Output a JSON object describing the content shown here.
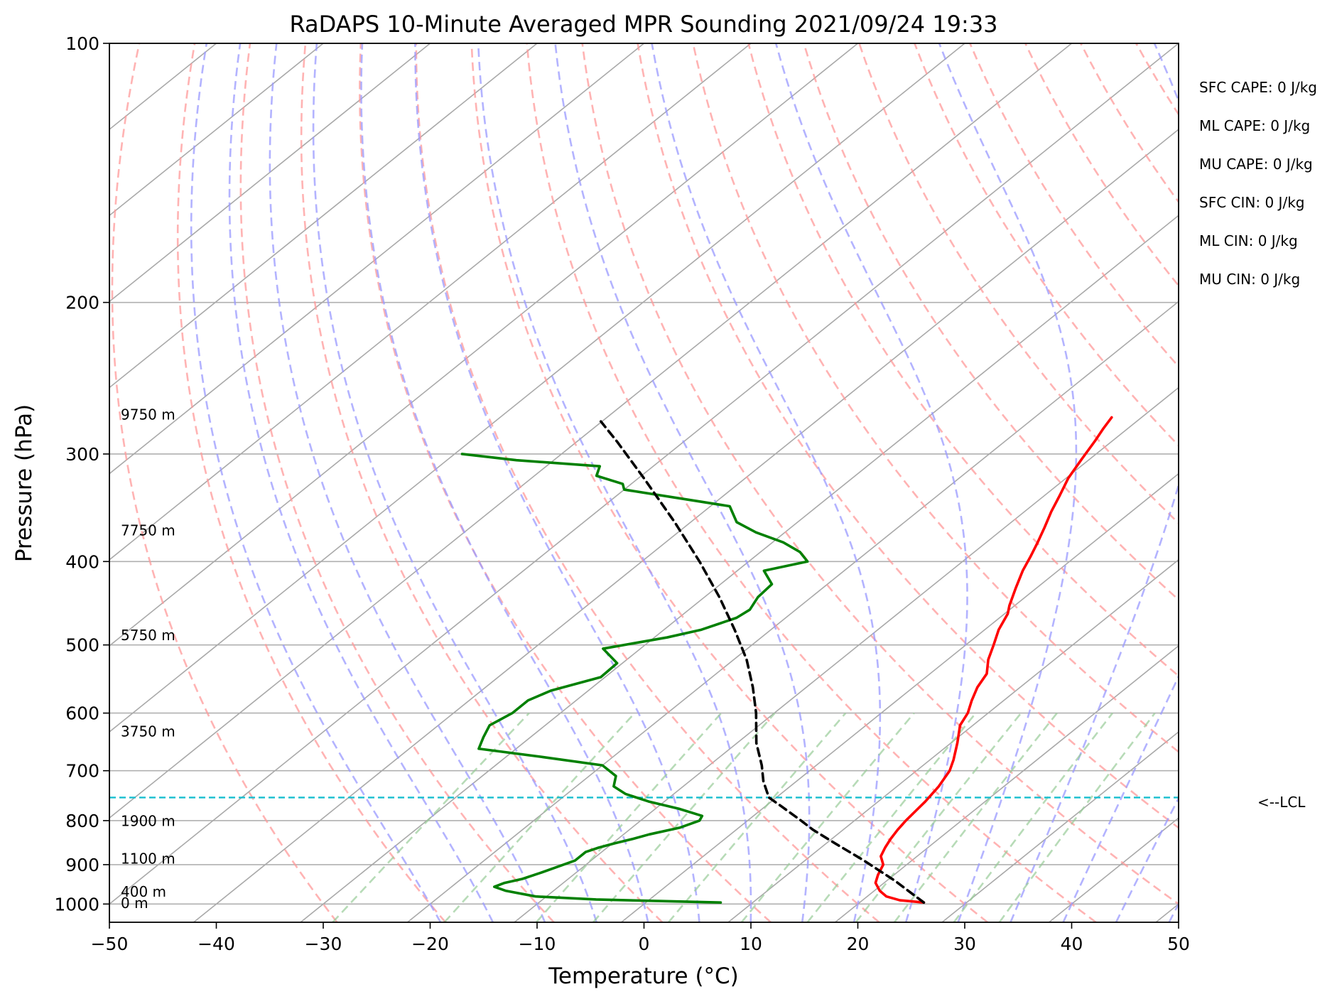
{
  "chart_data": {
    "type": "line",
    "title": "RaDAPS 10-Minute Averaged MPR Sounding 2021/09/24 19:33",
    "xlabel": "Temperature (°C)",
    "ylabel": "Pressure (hPa)",
    "xlim": [
      -50,
      50
    ],
    "ylim": [
      1050,
      100
    ],
    "y_scale": "log",
    "grid": true,
    "x_ticks": [
      -50,
      -40,
      -30,
      -20,
      -10,
      0,
      10,
      20,
      30,
      40,
      50
    ],
    "x_tick_labels": [
      "−50",
      "−40",
      "−30",
      "−20",
      "−10",
      "0",
      "10",
      "20",
      "30",
      "40",
      "50"
    ],
    "y_ticks": [
      100,
      200,
      300,
      400,
      500,
      600,
      700,
      800,
      900,
      1000
    ],
    "y_tick_labels": [
      "100",
      "200",
      "300",
      "400",
      "500",
      "600",
      "700",
      "800",
      "900",
      "1000"
    ],
    "skew_per_decade": 100,
    "colors": {
      "temperature": "#ff0000",
      "dewpoint": "#008000",
      "parcel": "#000000",
      "lcl": "#17becf",
      "isotherm": "#a9a9a9",
      "dry_adiabat": "#ff9999",
      "moist_adiabat": "#9999ff",
      "mixing_ratio": "#99cc99",
      "pressure_grid": "#b0b0b0"
    },
    "series": [
      {
        "key": "temperature",
        "points": [
          [
            996,
            26
          ],
          [
            990,
            23.5
          ],
          [
            980,
            21.8
          ],
          [
            965,
            20.5
          ],
          [
            945,
            19.2
          ],
          [
            925,
            18.5
          ],
          [
            900,
            17.8
          ],
          [
            880,
            16.6
          ],
          [
            860,
            16
          ],
          [
            840,
            15.5
          ],
          [
            820,
            15.1
          ],
          [
            800,
            14.8
          ],
          [
            780,
            14.6
          ],
          [
            760,
            14.4
          ],
          [
            730,
            13.9
          ],
          [
            700,
            13.1
          ],
          [
            680,
            12.2
          ],
          [
            650,
            10.6
          ],
          [
            620,
            8.8
          ],
          [
            600,
            8.1
          ],
          [
            580,
            7
          ],
          [
            560,
            6
          ],
          [
            540,
            5.3
          ],
          [
            520,
            3.8
          ],
          [
            500,
            2.6
          ],
          [
            480,
            1.3
          ],
          [
            460,
            0.3
          ],
          [
            450,
            -0.5
          ],
          [
            430,
            -1.9
          ],
          [
            410,
            -3.3
          ],
          [
            395,
            -4.2
          ],
          [
            380,
            -5.2
          ],
          [
            365,
            -6.3
          ],
          [
            350,
            -7.5
          ],
          [
            335,
            -8.6
          ],
          [
            320,
            -9.8
          ],
          [
            305,
            -10.7
          ],
          [
            290,
            -11.6
          ],
          [
            280,
            -12.3
          ],
          [
            272,
            -12.8
          ]
        ]
      },
      {
        "key": "dewpoint",
        "points": [
          [
            996,
            7
          ],
          [
            992,
            1
          ],
          [
            988,
            -5
          ],
          [
            980,
            -11
          ],
          [
            965,
            -14.5
          ],
          [
            955,
            -16
          ],
          [
            945,
            -15.5
          ],
          [
            935,
            -14.3
          ],
          [
            920,
            -13.3
          ],
          [
            905,
            -12.4
          ],
          [
            890,
            -11.5
          ],
          [
            870,
            -11.5
          ],
          [
            860,
            -10.8
          ],
          [
            850,
            -9.8
          ],
          [
            840,
            -8.6
          ],
          [
            830,
            -7.6
          ],
          [
            815,
            -5.5
          ],
          [
            800,
            -4.5
          ],
          [
            790,
            -4.8
          ],
          [
            775,
            -7.8
          ],
          [
            760,
            -11.5
          ],
          [
            745,
            -14.5
          ],
          [
            730,
            -16.5
          ],
          [
            710,
            -17.5
          ],
          [
            690,
            -20
          ],
          [
            675,
            -26.5
          ],
          [
            660,
            -33.5
          ],
          [
            640,
            -34.4
          ],
          [
            620,
            -35.2
          ],
          [
            600,
            -34.5
          ],
          [
            580,
            -34.5
          ],
          [
            565,
            -33.5
          ],
          [
            545,
            -30.4
          ],
          [
            525,
            -30.5
          ],
          [
            505,
            -33.5
          ],
          [
            490,
            -28.8
          ],
          [
            480,
            -26.5
          ],
          [
            465,
            -24.6
          ],
          [
            455,
            -24.3
          ],
          [
            440,
            -25
          ],
          [
            425,
            -25.2
          ],
          [
            410,
            -27.5
          ],
          [
            400,
            -24.5
          ],
          [
            390,
            -26.3
          ],
          [
            380,
            -29
          ],
          [
            370,
            -32.7
          ],
          [
            360,
            -35.7
          ],
          [
            345,
            -38.2
          ],
          [
            330,
            -50
          ],
          [
            325,
            -50.8
          ],
          [
            318,
            -54.2
          ],
          [
            310,
            -55
          ],
          [
            305,
            -63.5
          ],
          [
            300,
            -69.3
          ]
        ]
      },
      {
        "key": "parcel",
        "points": [
          [
            996,
            26
          ],
          [
            940,
            20.8
          ],
          [
            890,
            15.5
          ],
          [
            850,
            10.8
          ],
          [
            820,
            7.2
          ],
          [
            800,
            5
          ],
          [
            770,
            1.5
          ],
          [
            752,
            -0.7
          ],
          [
            720,
            -3.1
          ],
          [
            690,
            -5.1
          ],
          [
            650,
            -8.2
          ],
          [
            600,
            -11.7
          ],
          [
            560,
            -15
          ],
          [
            520,
            -18.8
          ],
          [
            480,
            -23.4
          ],
          [
            440,
            -28.6
          ],
          [
            400,
            -34.6
          ],
          [
            360,
            -41.5
          ],
          [
            320,
            -49.5
          ],
          [
            290,
            -56.3
          ],
          [
            275,
            -60.1
          ]
        ]
      }
    ],
    "lcl_pressure": 752,
    "lcl_label": "<--LCL",
    "height_labels": [
      {
        "pressure": 997,
        "text": "0 m"
      },
      {
        "pressure": 968,
        "text": "400 m"
      },
      {
        "pressure": 886,
        "text": "1100 m"
      },
      {
        "pressure": 801,
        "text": "1900 m"
      },
      {
        "pressure": 630,
        "text": "3750 m"
      },
      {
        "pressure": 487,
        "text": "5750 m"
      },
      {
        "pressure": 368,
        "text": "7750 m"
      },
      {
        "pressure": 270,
        "text": "9750 m"
      }
    ],
    "indices": [
      {
        "label": "SFC CAPE",
        "value": "0 J/kg"
      },
      {
        "label": "ML CAPE",
        "value": "0 J/kg"
      },
      {
        "label": "MU CAPE",
        "value": "0 J/kg"
      },
      {
        "label": "SFC CIN",
        "value": "0 J/kg"
      },
      {
        "label": "ML CIN",
        "value": "0 J/kg"
      },
      {
        "label": "MU CIN",
        "value": "0 J/kg"
      }
    ],
    "dry_adiabat_thetas_c": [
      -30,
      -20,
      -10,
      0,
      10,
      20,
      30,
      40,
      50,
      60,
      70,
      80,
      90,
      100,
      110,
      120,
      130,
      140,
      150,
      160,
      170,
      180,
      190,
      200,
      210
    ],
    "moist_adiabat_surface_temps_c": [
      -20,
      -15,
      -10,
      -5,
      0,
      5,
      10,
      15,
      20,
      25,
      30,
      35,
      40,
      45,
      50,
      55
    ],
    "mixing_ratios_gkg": [
      0.4,
      1,
      2,
      3,
      5,
      8,
      12,
      16,
      20,
      28,
      36
    ]
  }
}
